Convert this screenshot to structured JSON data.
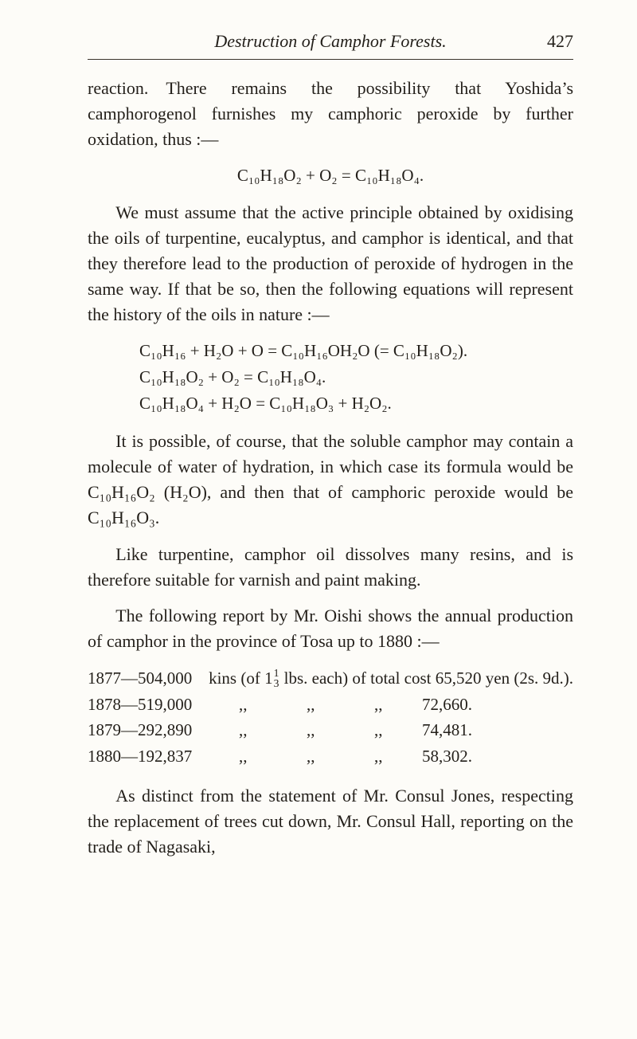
{
  "header": {
    "running_title": "Destruction of Camphor Forests.",
    "page_number": "427"
  },
  "body": {
    "p1a": "reaction. There remains the possibility that Yoshida’s camphorogenol furnishes my camphoric peroxide by further oxidation, thus :—",
    "eq1": "C₁₀H₁₈O₂ + O₂ = C₁₀H₁₈O₄.",
    "p2": "We must assume that the active principle obtained by oxidising the oils of turpentine, eucalyptus, and camphor is identical, and that they therefore lead to the production of peroxide of hydrogen in the same way. If that be so, then the following equations will represent the history of the oils in nature :—",
    "eq2_l1": "C₁₀H₁₆ + H₂O + O = C₁₀H₁₆OH₂O (= C₁₀H₁₈O₂).",
    "eq2_l2": "C₁₀H₁₈O₂ + O₂ = C₁₀H₁₈O₄.",
    "eq2_l3": "C₁₀H₁₈O₄ + H₂O = C₁₀H₁₈O₃ + H₂O₂.",
    "p3": "It is possible, of course, that the soluble camphor may contain a molecule of water of hydration, in which case its formula would be C₁₀H₁₆O₂ (H₂O), and then that of camphoric peroxide would be C₁₀H₁₆O₃.",
    "p4": "Like turpentine, camphor oil dissolves many resins, and is therefore suitable for varnish and paint making.",
    "p5": "The following report by Mr. Oishi shows the annual production of camphor in the province of Tosa up to 1880 :—",
    "tbl": {
      "r1": {
        "c1": "1877—504,000",
        "c2_pre": "kins (of 1",
        "c2_frac_n": "1",
        "c2_frac_d": "3",
        "c2_post": " lbs. each) of total cost 65,520 yen (2s. 9d.)."
      },
      "r2": {
        "c1": "1878—519,000",
        "c2": ",,",
        "c3": ",,",
        "c4": ",,",
        "c5": "72,660."
      },
      "r3": {
        "c1": "1879—292,890",
        "c2": ",,",
        "c3": ",,",
        "c4": ",,",
        "c5": "74,481."
      },
      "r4": {
        "c1": "1880—192,837",
        "c2": ",,",
        "c3": ",,",
        "c4": ",,",
        "c5": "58,302."
      }
    },
    "p6": "As distinct from the statement of Mr. Consul Jones, respecting the replacement of trees cut down, Mr. Consul Hall, reporting on the trade of Nagasaki,"
  }
}
